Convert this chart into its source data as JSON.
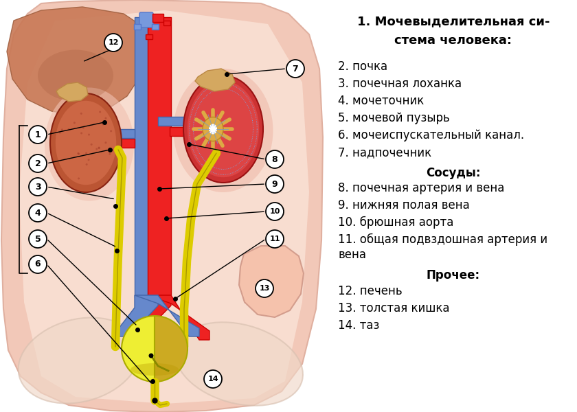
{
  "bg_outer": "#f2c8b8",
  "bg_inner": "#f8ddd0",
  "body_color": "#f5c8b5",
  "liver_color": "#c87855",
  "liver_shadow": "#aa6040",
  "kidney_L_outer": "#cc3333",
  "kidney_L_inner": "#dd4444",
  "kidney_R_outer": "#bb6644",
  "kidney_R_inner": "#cc7755",
  "adrenal_color": "#ddaa55",
  "pelvis_color": "#ddaa44",
  "pelvis_outline": "#bb8822",
  "aorta_color": "#ee2222",
  "vena_color": "#6688cc",
  "vena_dark": "#4466aa",
  "ureter_color": "#ddcc00",
  "ureter_outline": "#aa9900",
  "bladder_L_color": "#eeee33",
  "bladder_R_color": "#ccaa22",
  "bladder_outline": "#aaaa00",
  "iliac_art_color": "#ee2222",
  "iliac_vena_color": "#6688cc",
  "colon_color": "#f5c0a8",
  "colon_outline": "#d09888",
  "pelvis_bone_color": "#f8ddd0",
  "ann_circle_fill": "#ffffff",
  "ann_circle_edge": "#000000",
  "title_line1": "1. Мочевыделительная си-",
  "title_line2": "стема человека:",
  "legend": [
    [
      "2. почка",
      false
    ],
    [
      "3. почечная лоханка",
      false
    ],
    [
      "4. мочеточник",
      false
    ],
    [
      "5. мочевой пузырь",
      false
    ],
    [
      "6. мочеиспускательный канал.",
      false
    ],
    [
      "7. надпочечник",
      false
    ],
    [
      "Сосуды:",
      true
    ],
    [
      "8. почечная артерия и вена",
      false
    ],
    [
      "9. нижняя полая вена",
      false
    ],
    [
      "10. брюшная аорта",
      false
    ],
    [
      "11. общая подвздошная артерия и",
      false
    ],
    [
      "вена",
      false
    ],
    [
      "Прочее:",
      true
    ],
    [
      "12. печень",
      false
    ],
    [
      "13. толстая кишка",
      false
    ],
    [
      "14. таз",
      false
    ]
  ]
}
